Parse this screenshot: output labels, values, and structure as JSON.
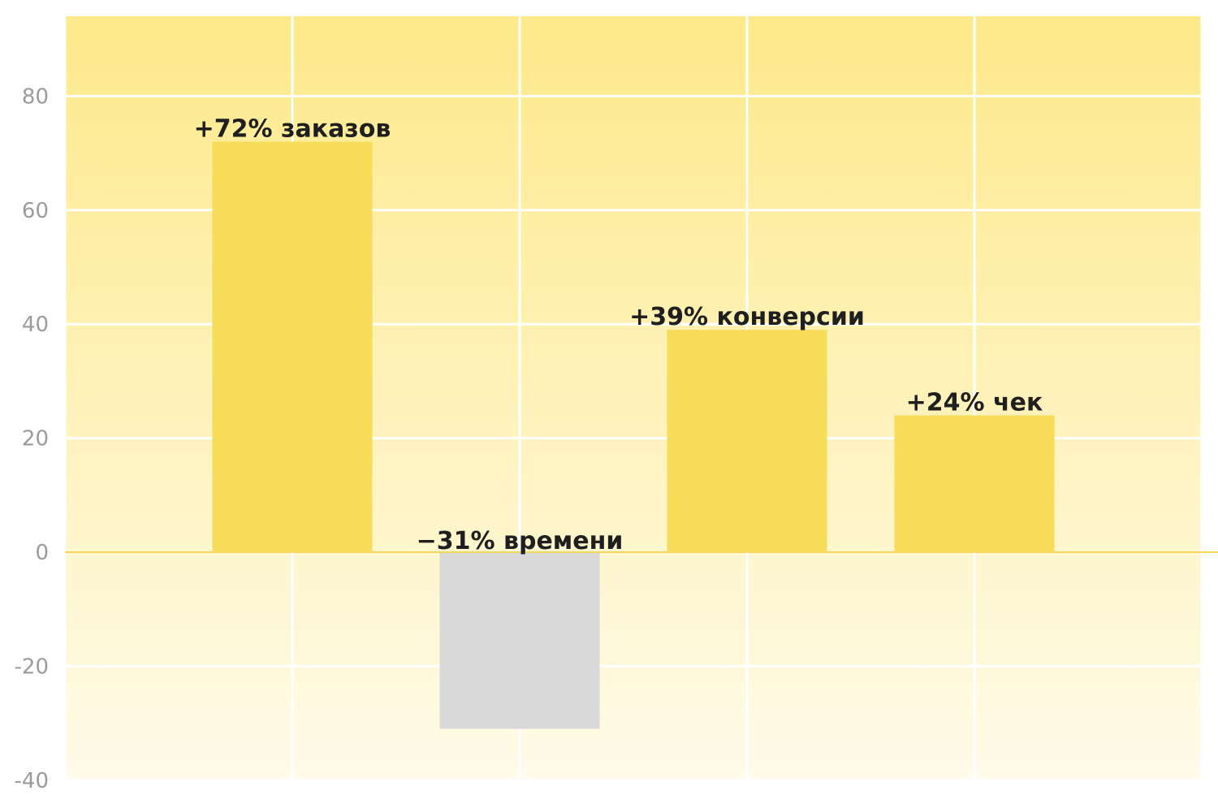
{
  "chart_data": {
    "type": "bar",
    "categories": [
      "заказов",
      "времени",
      "конверсии",
      "чек"
    ],
    "values": [
      72,
      -31,
      39,
      24
    ],
    "data_labels": [
      "+72% заказов",
      "−31% времени",
      "+39% конверсии",
      "+24% чек"
    ],
    "bar_colors": [
      "#f7dc5a",
      "#d9d9d9",
      "#f7dc5a",
      "#f7dc5a"
    ],
    "title": "",
    "xlabel": "",
    "ylabel": "",
    "ylim": [
      -40,
      94
    ],
    "yticks": [
      80,
      60,
      40,
      20,
      0,
      -20,
      -40
    ],
    "ytick_labels": [
      "80",
      "60",
      "40",
      "20",
      "0",
      "-20",
      "-40"
    ],
    "grid": true,
    "legend": false,
    "colors": {
      "background_top": "#fde98a",
      "background_bottom": "#fffbea",
      "positive_bar": "#f7dc5a",
      "negative_bar": "#d9d9d9",
      "zero_line": "#f3d75e",
      "grid": "#ffffff",
      "tick_text": "#9b9b9b",
      "label_text": "#1f1f1f"
    }
  }
}
